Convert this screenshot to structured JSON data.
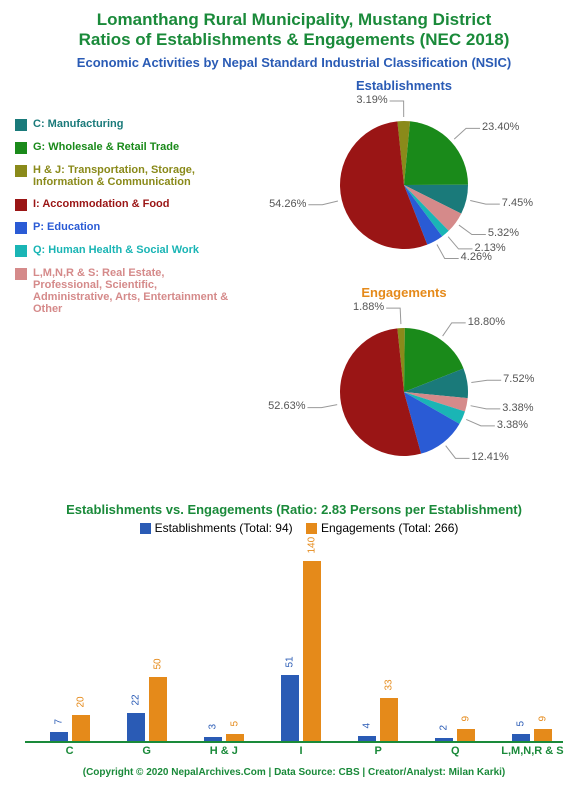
{
  "title_line1": "Lomanthang Rural Municipality, Mustang District",
  "title_line2": "Ratios of Establishments & Engagements (NEC 2018)",
  "title_color": "#1a8a3a",
  "title_fontsize": 17,
  "subtitle": "Economic Activities by Nepal Standard Industrial Classification (NSIC)",
  "subtitle_color": "#2a5bb5",
  "subtitle_fontsize": 13,
  "legend": [
    {
      "key": "C",
      "label": "C: Manufacturing",
      "color": "#1a7a7a"
    },
    {
      "key": "G",
      "label": "G: Wholesale & Retail Trade",
      "color": "#1a8a1a"
    },
    {
      "key": "HJ",
      "label": "H & J: Transportation, Storage, Information & Communication",
      "color": "#8a8a1a"
    },
    {
      "key": "I",
      "label": "I: Accommodation & Food",
      "color": "#9a1515"
    },
    {
      "key": "P",
      "label": "P: Education",
      "color": "#2a5bd5"
    },
    {
      "key": "Q",
      "label": "Q: Human Health & Social Work",
      "color": "#1ab5b5"
    },
    {
      "key": "L",
      "label": "L,M,N,R & S: Real Estate, Professional, Scientific, Administrative, Arts, Entertainment & Other",
      "color": "#d58a8a"
    }
  ],
  "pie1": {
    "title": "Establishments",
    "title_color": "#2a5bb5",
    "slices": [
      {
        "key": "HJ",
        "value": 3.19,
        "label": "3.19%",
        "color": "#8a8a1a"
      },
      {
        "key": "G",
        "value": 23.4,
        "label": "23.40%",
        "color": "#1a8a1a"
      },
      {
        "key": "C",
        "value": 7.45,
        "label": "7.45%",
        "color": "#1a7a7a"
      },
      {
        "key": "L",
        "value": 5.32,
        "label": "5.32%",
        "color": "#d58a8a"
      },
      {
        "key": "Q",
        "value": 2.13,
        "label": "2.13%",
        "color": "#1ab5b5"
      },
      {
        "key": "P",
        "value": 4.26,
        "label": "4.26%",
        "color": "#2a5bd5"
      },
      {
        "key": "I",
        "value": 54.26,
        "label": "54.26%",
        "color": "#9a1515"
      }
    ]
  },
  "pie2": {
    "title": "Engagements",
    "title_color": "#e58a1a",
    "slices": [
      {
        "key": "HJ",
        "value": 1.88,
        "label": "1.88%",
        "color": "#8a8a1a"
      },
      {
        "key": "G",
        "value": 18.8,
        "label": "18.80%",
        "color": "#1a8a1a"
      },
      {
        "key": "C",
        "value": 7.52,
        "label": "7.52%",
        "color": "#1a7a7a"
      },
      {
        "key": "L",
        "value": 3.38,
        "label": "3.38%",
        "color": "#d58a8a"
      },
      {
        "key": "Q",
        "value": 3.38,
        "label": "3.38%",
        "color": "#1ab5b5"
      },
      {
        "key": "P",
        "value": 12.41,
        "label": "12.41%",
        "color": "#2a5bd5"
      },
      {
        "key": "I",
        "value": 52.63,
        "label": "52.63%",
        "color": "#9a1515"
      }
    ]
  },
  "bar": {
    "title": "Establishments vs. Engagements (Ratio: 2.83 Persons per Establishment)",
    "title_color": "#1a8a3a",
    "legend_est": "Establishments (Total: 94)",
    "legend_eng": "Engagements (Total: 266)",
    "est_color": "#2a5bb5",
    "eng_color": "#e58a1a",
    "axis_color": "#1a8a3a",
    "max": 140,
    "categories": [
      {
        "label": "C",
        "est": 7,
        "eng": 20
      },
      {
        "label": "G",
        "est": 22,
        "eng": 50
      },
      {
        "label": "H & J",
        "est": 3,
        "eng": 5
      },
      {
        "label": "I",
        "est": 51,
        "eng": 140
      },
      {
        "label": "P",
        "est": 4,
        "eng": 33
      },
      {
        "label": "Q",
        "est": 2,
        "eng": 9
      },
      {
        "label": "L,M,N,R & S",
        "est": 5,
        "eng": 9
      }
    ]
  },
  "footer": "(Copyright © 2020 NepalArchives.Com | Data Source: CBS | Creator/Analyst: Milan Karki)",
  "footer_color": "#1a8a3a"
}
